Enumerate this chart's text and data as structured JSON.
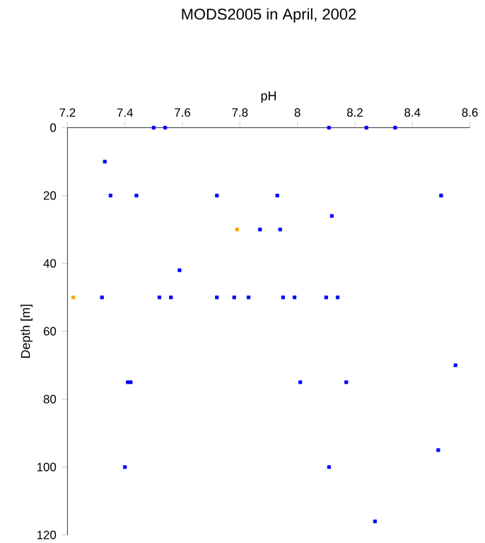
{
  "chart_data": {
    "type": "scatter",
    "title": "MODS2005 in April, 2002",
    "xlabel": "pH",
    "ylabel": "Depth [m]",
    "xlim": [
      7.2,
      8.6
    ],
    "xticks": [
      7.2,
      7.4,
      7.6,
      7.8,
      8,
      8.2,
      8.4,
      8.6
    ],
    "ylim": [
      120,
      0
    ],
    "yticks": [
      0,
      20,
      40,
      60,
      80,
      100,
      120
    ],
    "marker": "square",
    "series": [
      {
        "color": "#0000ff",
        "x": [
          7.5,
          7.54,
          8.11,
          8.24,
          8.34,
          7.33,
          7.35,
          7.44,
          7.72,
          7.93,
          8.5,
          8.12,
          7.87,
          7.94,
          7.59,
          7.32,
          7.52,
          7.56,
          7.72,
          7.78,
          7.83,
          7.95,
          7.99,
          8.1,
          8.14,
          8.55,
          7.41,
          7.42,
          8.01,
          8.17,
          8.49,
          7.4,
          8.11,
          8.27
        ],
        "values": [
          0,
          0,
          0,
          0,
          0,
          10,
          20,
          20,
          20,
          20,
          20,
          26,
          30,
          30,
          42,
          50,
          50,
          50,
          50,
          50,
          50,
          50,
          50,
          50,
          50,
          70,
          75,
          75,
          75,
          75,
          95,
          100,
          100,
          116
        ]
      },
      {
        "color": "#ffa500",
        "x": [
          7.79,
          7.22
        ],
        "values": [
          30,
          50
        ]
      }
    ]
  }
}
